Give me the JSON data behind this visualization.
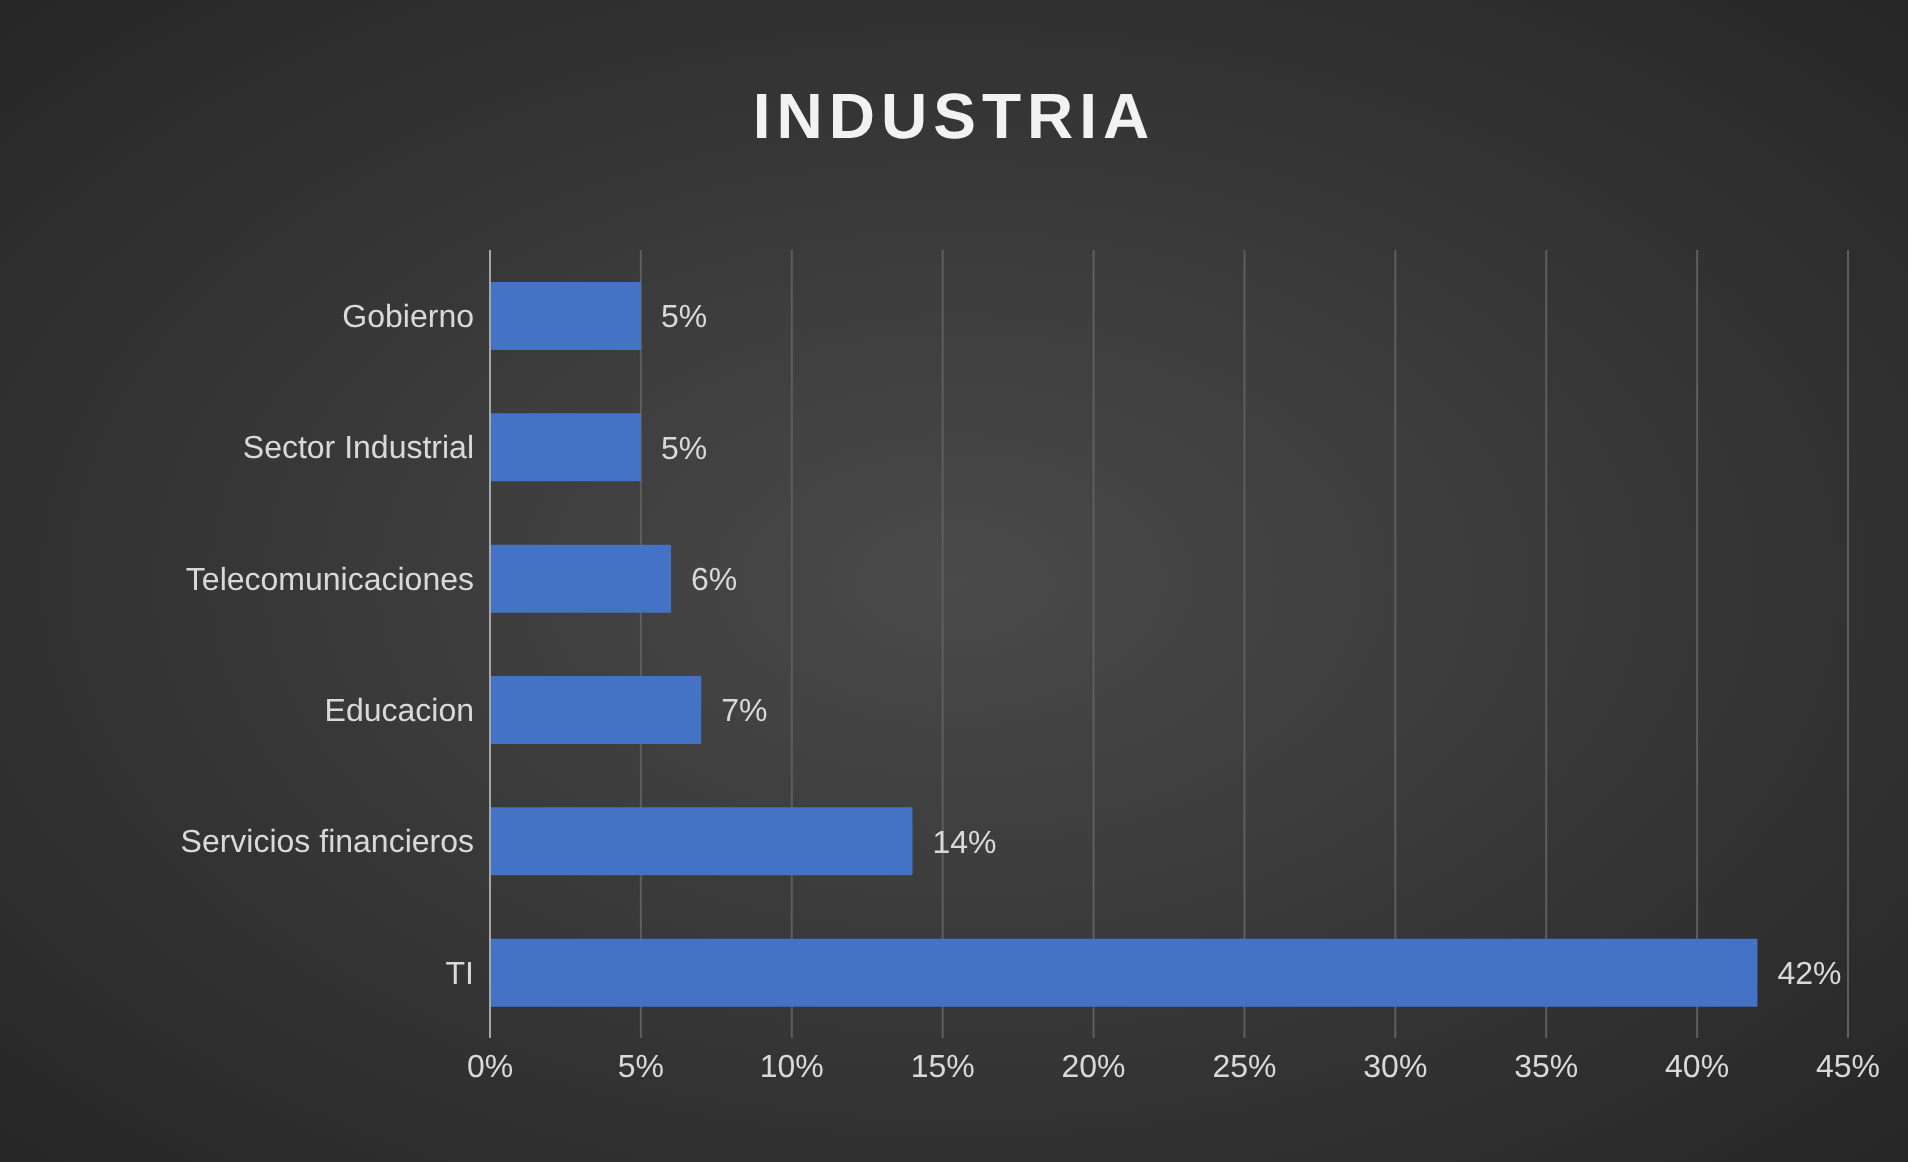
{
  "chart_data": {
    "type": "bar",
    "orientation": "horizontal",
    "title": "INDUSTRIA",
    "categories": [
      "Gobierno",
      "Sector Industrial",
      "Telecomunicaciones",
      "Educacion",
      "Servicios financieros",
      "TI"
    ],
    "values": [
      5,
      5,
      6,
      7,
      14,
      42
    ],
    "value_labels": [
      "5%",
      "5%",
      "6%",
      "7%",
      "14%",
      "42%"
    ],
    "color": "#4472c4",
    "xlim": [
      0,
      45
    ],
    "xticks": [
      {
        "value": 0,
        "label": "0%"
      },
      {
        "value": 5,
        "label": "5%"
      },
      {
        "value": 10,
        "label": "10%"
      },
      {
        "value": 15,
        "label": "15%"
      },
      {
        "value": 20,
        "label": "20%"
      },
      {
        "value": 25,
        "label": "25%"
      },
      {
        "value": 30,
        "label": "30%"
      },
      {
        "value": 35,
        "label": "35%"
      },
      {
        "value": 40,
        "label": "40%"
      },
      {
        "value": 45,
        "label": "45%"
      }
    ],
    "grid": "x"
  }
}
